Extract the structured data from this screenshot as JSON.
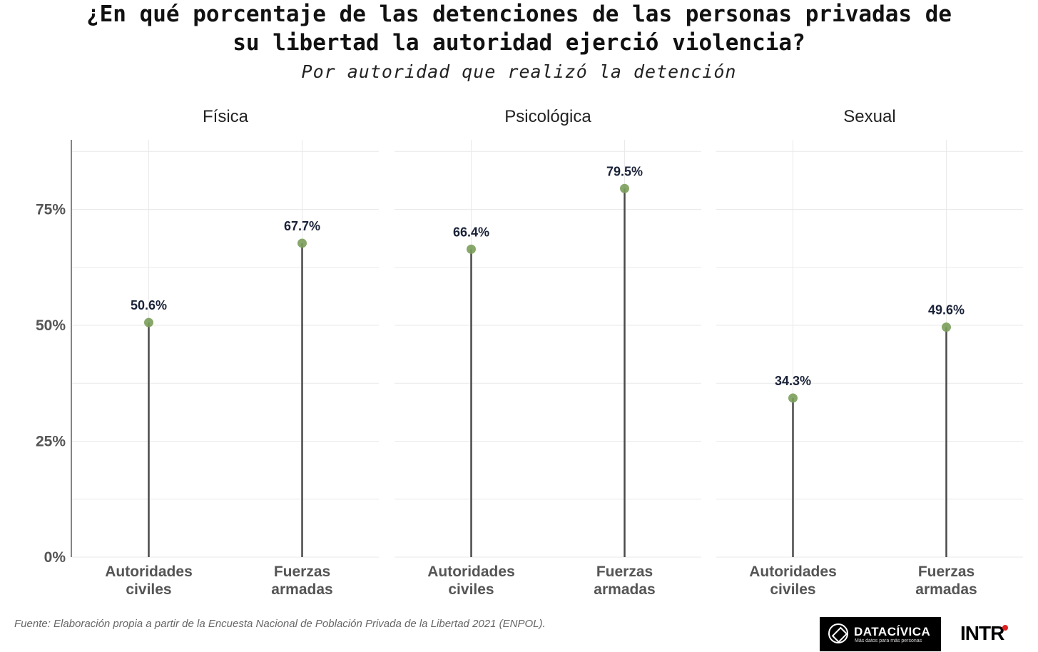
{
  "title_lines": [
    "¿En qué porcentaje de las detenciones de las personas privadas de",
    "su libertad la autoridad ejerció violencia?"
  ],
  "subtitle": "Por autoridad que realizó la detención",
  "source": "Fuente: Elaboración propia a partir de la Encuesta Nacional de Población Privada de la Libertad 2021 (ENPOL).",
  "logos": {
    "datacivica_name": "DATACÍVICA",
    "datacivica_tagline": "Más datos para más personas",
    "intr_name": "INTR"
  },
  "colors": {
    "point": "#7a9e5a",
    "stem": "#4a4a4a",
    "grid": "#e9e9e9",
    "label": "#1a2238"
  },
  "chart_data": {
    "type": "lollipop",
    "categories": [
      "Autoridades civiles",
      "Fuerzas armadas"
    ],
    "category_lines": [
      [
        "Autoridades",
        "civiles"
      ],
      [
        "Fuerzas",
        "armadas"
      ]
    ],
    "facets": [
      {
        "name": "Física",
        "values": [
          50.6,
          67.7
        ],
        "labels": [
          "50.6%",
          "67.7%"
        ]
      },
      {
        "name": "Psicológica",
        "values": [
          66.4,
          79.5
        ],
        "labels": [
          "66.4%",
          "79.5%"
        ]
      },
      {
        "name": "Sexual",
        "values": [
          34.3,
          49.6
        ],
        "labels": [
          "34.3%",
          "49.6%"
        ]
      }
    ],
    "yticks": [
      0,
      25,
      50,
      75
    ],
    "ytick_labels": [
      "0%",
      "25%",
      "50%",
      "75%"
    ],
    "ylim": [
      0,
      90
    ],
    "grid": true,
    "legend": "none"
  }
}
